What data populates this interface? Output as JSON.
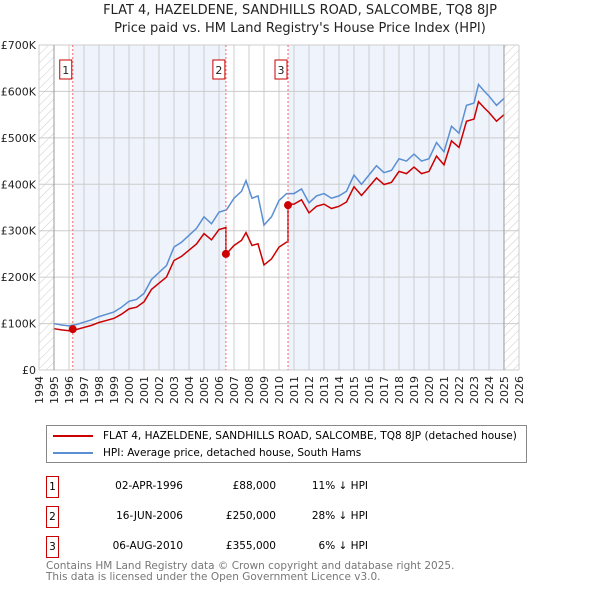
{
  "chart_data": {
    "type": "line",
    "title": "FLAT 4, HAZELDENE, SANDHILLS ROAD, SALCOMBE, TQ8 8JP",
    "subtitle": "Price paid vs. HM Land Registry's House Price Index (HPI)",
    "xlim": [
      1994,
      2026
    ],
    "ylim": [
      0,
      700000
    ],
    "x_ticks": [
      "1994",
      "1995",
      "1996",
      "1997",
      "1998",
      "1999",
      "2000",
      "2001",
      "2002",
      "2003",
      "2004",
      "2005",
      "2006",
      "2007",
      "2008",
      "2009",
      "2010",
      "2011",
      "2012",
      "2013",
      "2014",
      "2015",
      "2016",
      "2017",
      "2018",
      "2019",
      "2020",
      "2021",
      "2022",
      "2023",
      "2024",
      "2025",
      "2026"
    ],
    "y_ticks": [
      {
        "v": 0,
        "label": "£0"
      },
      {
        "v": 100000,
        "label": "£100K"
      },
      {
        "v": 200000,
        "label": "£200K"
      },
      {
        "v": 300000,
        "label": "£300K"
      },
      {
        "v": 400000,
        "label": "£400K"
      },
      {
        "v": 500000,
        "label": "£500K"
      },
      {
        "v": 600000,
        "label": "£600K"
      },
      {
        "v": 700000,
        "label": "£700K"
      }
    ],
    "grid": true,
    "hpi": {
      "name": "HPI: Average price, detached house, South Hams",
      "color": "#5b8fd4",
      "x": [
        1995,
        1995.5,
        1996,
        1996.5,
        1997,
        1997.5,
        1998,
        1998.5,
        1999,
        1999.5,
        2000,
        2000.5,
        2001,
        2001.5,
        2002,
        2002.5,
        2003,
        2003.5,
        2004,
        2004.5,
        2005,
        2005.5,
        2006,
        2006.5,
        2007,
        2007.5,
        2007.8,
        2008.2,
        2008.6,
        2009,
        2009.5,
        2010,
        2010.5,
        2011,
        2011.5,
        2012,
        2012.5,
        2013,
        2013.5,
        2014,
        2014.5,
        2015,
        2015.5,
        2016,
        2016.5,
        2017,
        2017.5,
        2018,
        2018.5,
        2019,
        2019.5,
        2020,
        2020.5,
        2021,
        2021.5,
        2022,
        2022.5,
        2023,
        2023.3,
        2023.7,
        2024,
        2024.5,
        2025
      ],
      "y": [
        100000,
        97000,
        95000,
        98000,
        103000,
        108000,
        115000,
        120000,
        125000,
        135000,
        148000,
        152000,
        165000,
        195000,
        210000,
        225000,
        265000,
        275000,
        290000,
        305000,
        330000,
        315000,
        340000,
        345000,
        370000,
        385000,
        408000,
        370000,
        375000,
        312000,
        330000,
        365000,
        380000,
        380000,
        390000,
        360000,
        375000,
        380000,
        370000,
        375000,
        385000,
        420000,
        400000,
        420000,
        440000,
        425000,
        430000,
        455000,
        450000,
        465000,
        450000,
        455000,
        490000,
        470000,
        525000,
        510000,
        570000,
        575000,
        615000,
        600000,
        590000,
        570000,
        585000
      ]
    },
    "property": {
      "name": "FLAT 4, HAZELDENE, SANDHILLS ROAD, SALCOMBE, TQ8 8JP (detached house)",
      "color": "#cc0000"
    },
    "sales": [
      {
        "id": "1",
        "x": 1996.25,
        "date": "02-APR-1996",
        "price": 88000,
        "price_label": "£88,000",
        "hpi_diff": "11% ↓ HPI",
        "ratio": 0.89
      },
      {
        "id": "2",
        "x": 2006.46,
        "date": "16-JUN-2006",
        "price": 250000,
        "price_label": "£250,000",
        "hpi_diff": "28% ↓ HPI",
        "ratio": 0.725
      },
      {
        "id": "3",
        "x": 2010.6,
        "date": "06-AUG-2010",
        "price": 355000,
        "price_label": "£355,000",
        "hpi_diff": "6% ↓ HPI",
        "ratio": 0.94
      }
    ],
    "legend_position": "bottom"
  },
  "footer": {
    "line1": "Contains HM Land Registry data © Crown copyright and database right 2025.",
    "line2": "This data is licensed under the Open Government Licence v3.0."
  }
}
